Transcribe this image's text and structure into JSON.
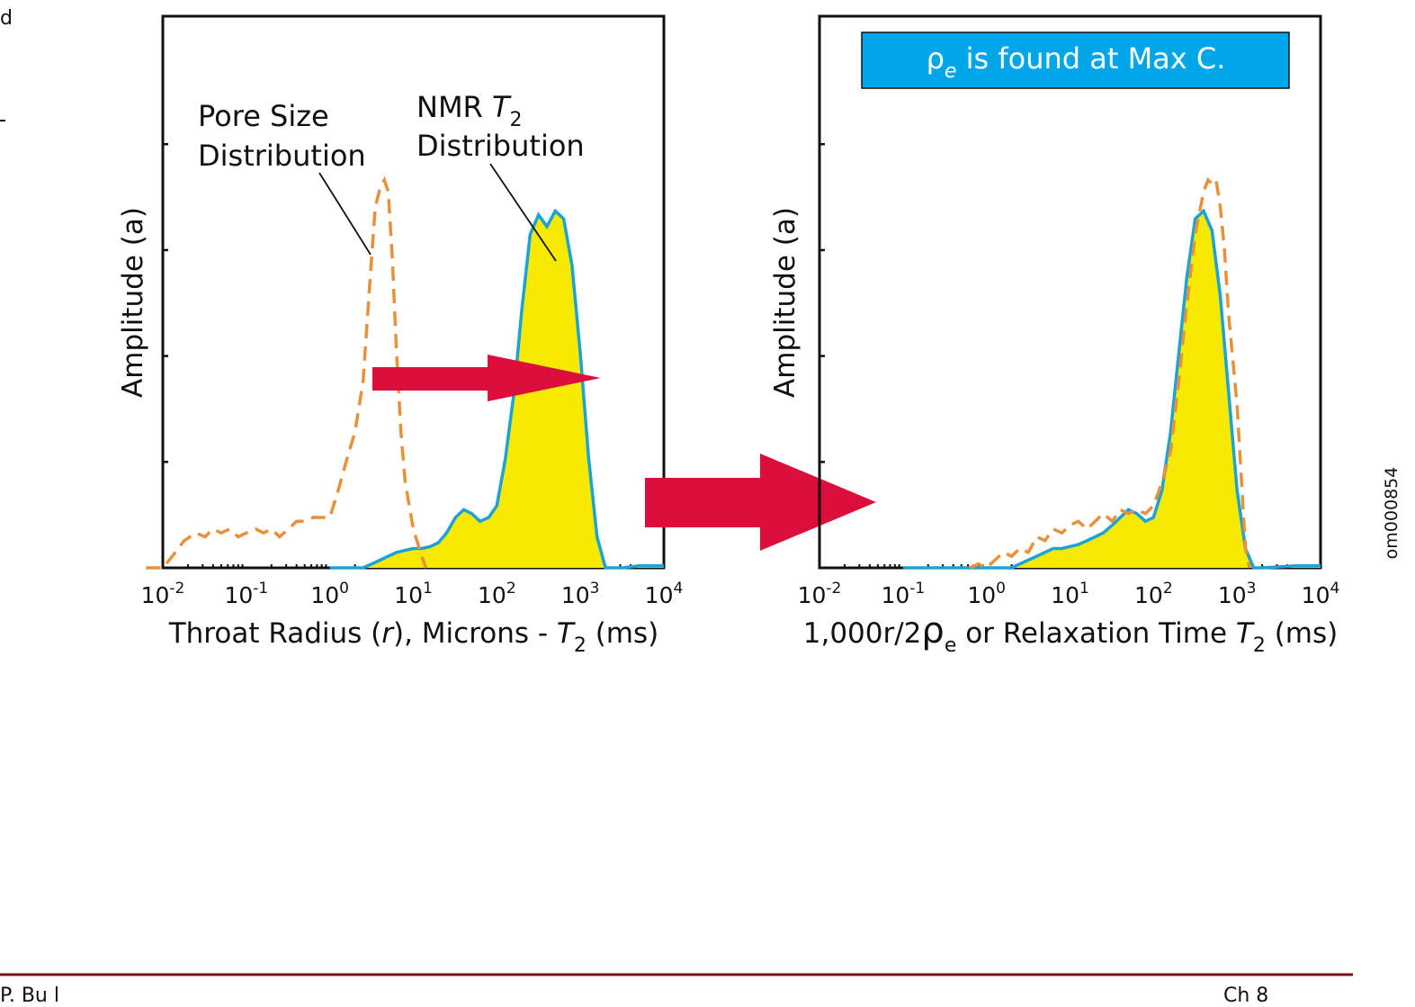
{
  "edge": {
    "top_left": "d",
    "bottom_left": "P. Bu    l",
    "bottom_right": "Ch       8"
  },
  "figure_id": "om000854",
  "colors": {
    "nmr_line": "#1ba3d9",
    "nmr_fill": "#f5ea00",
    "pore_line": "#e8913b",
    "arrow": "#dc0f3c",
    "banner": "#00a6e8",
    "footer_rule": "#7a0f1e"
  },
  "chart_data": [
    {
      "type": "line",
      "panel": "left",
      "xlabel": "Throat Radius (r), Microns - T2 (ms)",
      "xlabel_parts": {
        "a": "Throat Radius (",
        "r": "r",
        "b": "), Microns - ",
        "T": "T",
        "sub": "2",
        "c": " (ms)"
      },
      "ylabel": "Amplitude (a)",
      "xscale": "log",
      "xlim": [
        0.01,
        10000
      ],
      "ylim": [
        0,
        1
      ],
      "xticks": [
        {
          "base": "10",
          "exp": "-2"
        },
        {
          "base": "10",
          "exp": "-1"
        },
        {
          "base": "10",
          "exp": "0"
        },
        {
          "base": "10",
          "exp": "1"
        },
        {
          "base": "10",
          "exp": "2"
        },
        {
          "base": "10",
          "exp": "3"
        },
        {
          "base": "10",
          "exp": "4"
        }
      ],
      "annotations": [
        {
          "lines": [
            "Pore Size",
            "Distribution"
          ],
          "points_to": "Pore Size Distribution"
        },
        {
          "lines": [
            "NMR T2",
            "Distribution"
          ],
          "nmr_parts": {
            "a": "NMR ",
            "T": "T",
            "sub": "2"
          },
          "second": "Distribution",
          "points_to": "NMR T2 Distribution"
        }
      ],
      "series": [
        {
          "name": "Pore Size Distribution",
          "style": "dashed",
          "x": [
            0.0063,
            0.01,
            0.013,
            0.018,
            0.025,
            0.032,
            0.04,
            0.05,
            0.063,
            0.08,
            0.1,
            0.13,
            0.16,
            0.2,
            0.25,
            0.32,
            0.4,
            0.5,
            0.63,
            0.8,
            1.0,
            1.26,
            1.6,
            2.0,
            2.5,
            3.16,
            3.5,
            4.0,
            4.5,
            5.0,
            5.6,
            6.3,
            7.1,
            8.0,
            10.0,
            12.6,
            14.1
          ],
          "y": [
            0.0,
            0.0,
            0.03,
            0.07,
            0.09,
            0.08,
            0.1,
            0.09,
            0.1,
            0.08,
            0.09,
            0.1,
            0.09,
            0.1,
            0.08,
            0.1,
            0.12,
            0.12,
            0.13,
            0.13,
            0.13,
            0.2,
            0.28,
            0.35,
            0.48,
            0.8,
            0.93,
            0.98,
            1.0,
            0.97,
            0.8,
            0.55,
            0.35,
            0.22,
            0.1,
            0.03,
            0.0
          ]
        },
        {
          "name": "NMR T2 Distribution",
          "style": "solid-filled",
          "x": [
            1.0,
            2.5,
            3.16,
            4.0,
            5.0,
            6.3,
            8.0,
            10.0,
            12.6,
            16.0,
            20.0,
            25.0,
            32.0,
            40.0,
            50.0,
            63.0,
            80.0,
            100.0,
            126.0,
            160.0,
            200.0,
            251.0,
            316.0,
            398.0,
            501.0,
            631.0,
            794.0,
            1000.0,
            1259.0,
            1585.0,
            2000.0,
            2512.0,
            3162.0,
            5012.0,
            10000.0
          ],
          "y": [
            0.0,
            0.0,
            0.01,
            0.02,
            0.03,
            0.04,
            0.045,
            0.05,
            0.05,
            0.055,
            0.065,
            0.09,
            0.13,
            0.15,
            0.14,
            0.12,
            0.13,
            0.16,
            0.28,
            0.45,
            0.67,
            0.86,
            0.91,
            0.88,
            0.92,
            0.9,
            0.78,
            0.55,
            0.28,
            0.08,
            0.0,
            0.0,
            0.0,
            0.005,
            0.005
          ]
        }
      ]
    },
    {
      "type": "line",
      "panel": "right",
      "xlabel": "1,000r/2ρe or Relaxation Time T2 (ms)",
      "xlabel_parts": {
        "a": "1,000r/2",
        "rho": "ρ",
        "e": "e",
        "b": " or Relaxation Time ",
        "T": "T",
        "sub": "2",
        "c": " (ms)"
      },
      "ylabel": "Amplitude (a)",
      "xscale": "log",
      "xlim": [
        0.01,
        10000
      ],
      "ylim": [
        0,
        1
      ],
      "xticks": [
        {
          "base": "10",
          "exp": "-2"
        },
        {
          "base": "10",
          "exp": "-1"
        },
        {
          "base": "10",
          "exp": "0"
        },
        {
          "base": "10",
          "exp": "1"
        },
        {
          "base": "10",
          "exp": "2"
        },
        {
          "base": "10",
          "exp": "3"
        },
        {
          "base": "10",
          "exp": "4"
        }
      ],
      "banner": {
        "rho": "ρ",
        "sub": "e",
        "text": " is found at Max C."
      },
      "series": [
        {
          "name": "Pore Size Distribution",
          "style": "dashed",
          "x": [
            0.63,
            0.8,
            1.0,
            1.26,
            1.6,
            2.0,
            2.5,
            3.16,
            4.0,
            5.0,
            6.3,
            8.0,
            10.0,
            12.6,
            16.0,
            20.0,
            25.0,
            32.0,
            40.0,
            50.0,
            63.0,
            80.0,
            100.0,
            126.0,
            160.0,
            200.0,
            251.0,
            316.0,
            398.0,
            450.0,
            501.0,
            562.0,
            631.0,
            708.0,
            794.0,
            1000.0,
            1259.0,
            1413.0
          ],
          "y": [
            0.0,
            0.01,
            0.0,
            0.02,
            0.04,
            0.03,
            0.05,
            0.04,
            0.08,
            0.07,
            0.1,
            0.09,
            0.11,
            0.12,
            0.1,
            0.12,
            0.14,
            0.12,
            0.15,
            0.14,
            0.15,
            0.14,
            0.16,
            0.22,
            0.3,
            0.48,
            0.68,
            0.86,
            0.97,
            1.0,
            0.99,
            1.0,
            0.93,
            0.82,
            0.65,
            0.42,
            0.05,
            0.0
          ]
        },
        {
          "name": "NMR T2 Distribution",
          "style": "solid-filled",
          "x": [
            0.1,
            0.5,
            1.0,
            1.6,
            2.0,
            2.5,
            3.16,
            4.0,
            5.0,
            6.3,
            8.0,
            10.0,
            12.6,
            16.0,
            20.0,
            25.0,
            32.0,
            40.0,
            50.0,
            63.0,
            80.0,
            100.0,
            126.0,
            160.0,
            200.0,
            251.0,
            316.0,
            398.0,
            501.0,
            631.0,
            794.0,
            1000.0,
            1259.0,
            1585.0,
            2000.0,
            5012.0,
            10000.0
          ],
          "y": [
            0.0,
            0.0,
            0.0,
            0.0,
            0.0,
            0.01,
            0.02,
            0.03,
            0.04,
            0.05,
            0.05,
            0.055,
            0.06,
            0.07,
            0.08,
            0.09,
            0.11,
            0.13,
            0.15,
            0.14,
            0.12,
            0.13,
            0.2,
            0.35,
            0.55,
            0.75,
            0.9,
            0.92,
            0.87,
            0.7,
            0.45,
            0.2,
            0.05,
            0.0,
            0.0,
            0.005,
            0.005
          ]
        }
      ]
    }
  ]
}
